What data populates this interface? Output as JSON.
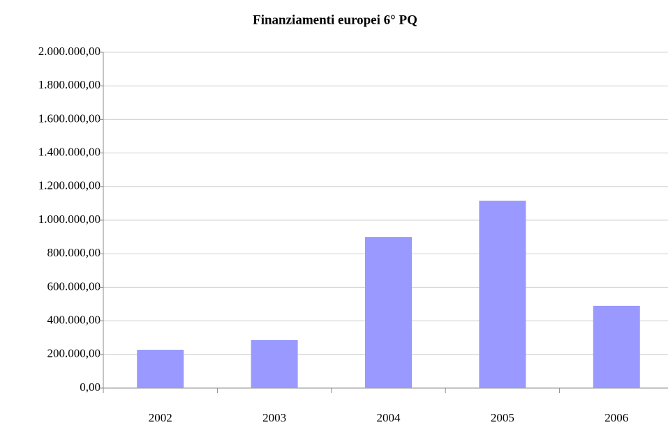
{
  "chart_data": {
    "type": "bar",
    "title": "Finanziamenti europei 6° PQ",
    "categories": [
      "2002",
      "2003",
      "2004",
      "2005",
      "2006"
    ],
    "values": [
      228000,
      286000,
      900000,
      1116000,
      490000
    ],
    "color": "#9999ff",
    "ylim": [
      0,
      2000000
    ],
    "yticks": [
      {
        "value": 0,
        "label": "0,00"
      },
      {
        "value": 200000,
        "label": "200.000,00"
      },
      {
        "value": 400000,
        "label": "400.000,00"
      },
      {
        "value": 600000,
        "label": "600.000,00"
      },
      {
        "value": 800000,
        "label": "800.000,00"
      },
      {
        "value": 1000000,
        "label": "1.000.000,00"
      },
      {
        "value": 1200000,
        "label": "1.200.000,00"
      },
      {
        "value": 1400000,
        "label": "1.400.000,00"
      },
      {
        "value": 1600000,
        "label": "1.600.000,00"
      },
      {
        "value": 1800000,
        "label": "1.800.000,00"
      },
      {
        "value": 2000000,
        "label": "2.000.000,00"
      }
    ],
    "grid": true
  }
}
